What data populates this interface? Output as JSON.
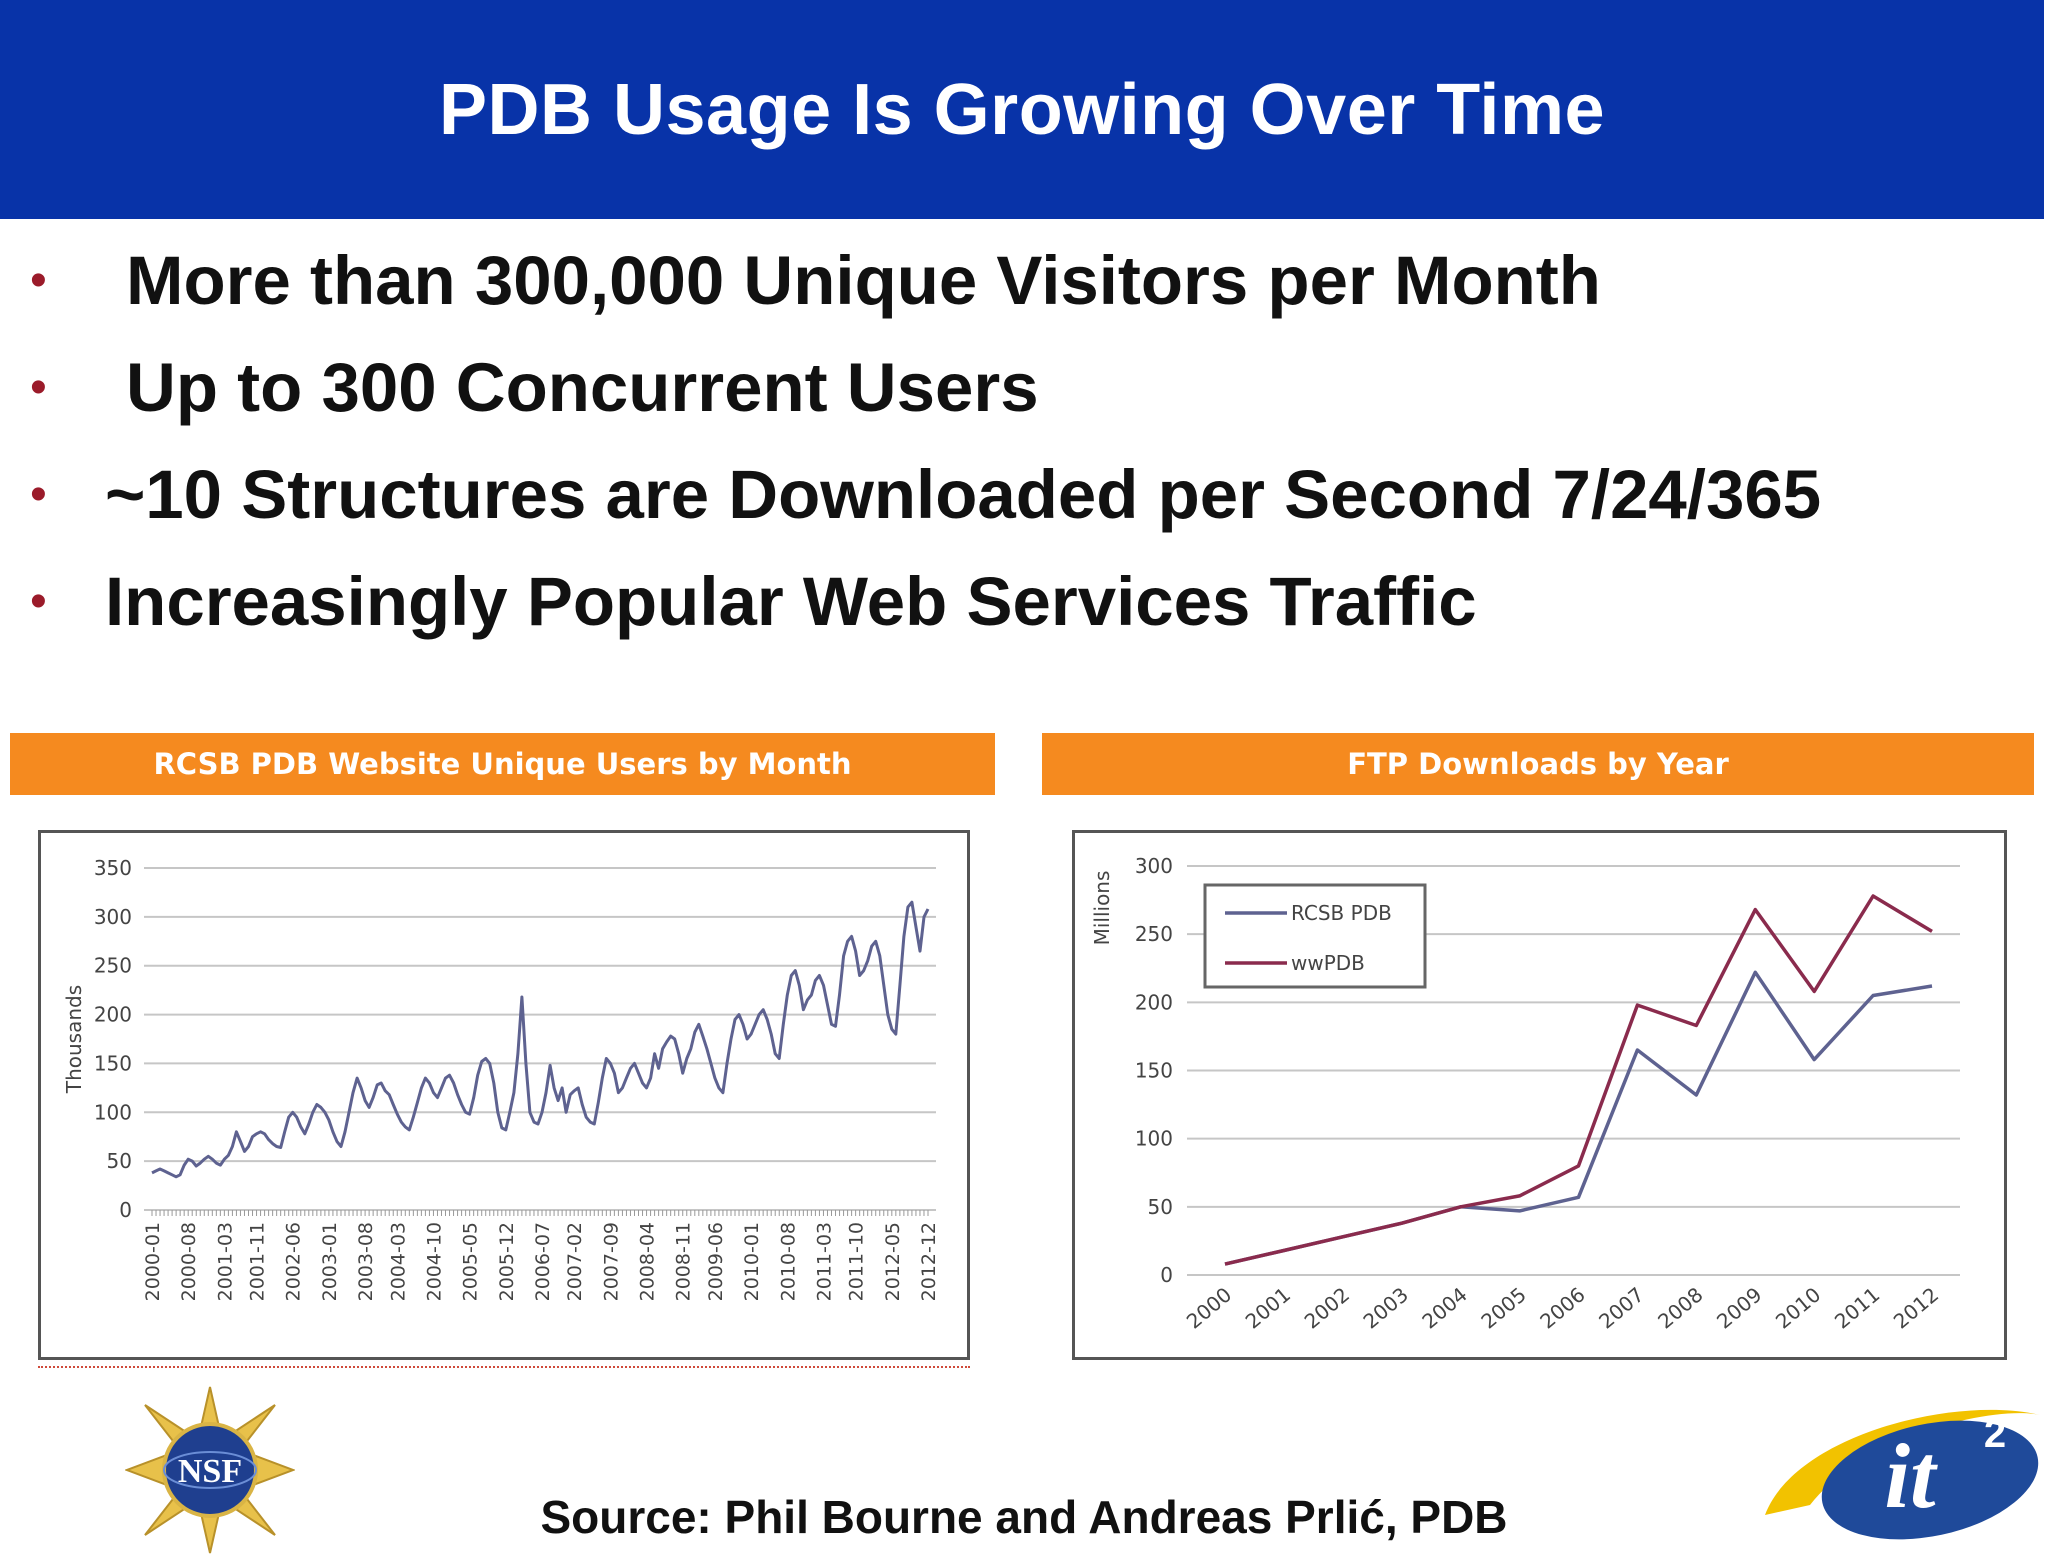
{
  "slide": {
    "title": "PDB Usage Is Growing Over Time",
    "bullets": [
      "More than 300,000 Unique Visitors per Month",
      "Up to 300 Concurrent Users",
      "~10 Structures are Downloaded per Second 7/24/365",
      "Increasingly Popular Web Services Traffic"
    ],
    "source": "Source: Phil Bourne and Andreas Prlić, PDB",
    "logos": {
      "left": "NSF",
      "right_text": "it",
      "right_superscript": "2"
    }
  },
  "colors": {
    "header_bg": "#0833a8",
    "bullet_marker": "#9b1b2a",
    "chart_header_bg": "#f58a1f",
    "rcsb_line": "#5e6290",
    "wwpdb_line": "#8a2b4d"
  },
  "chart_data": [
    {
      "type": "line",
      "header": "RCSB PDB Website Unique Users by Month",
      "title": "",
      "ylabel": "Thousands",
      "xlabel": "",
      "ylim": [
        0,
        350
      ],
      "yticks": [
        0,
        50,
        100,
        150,
        200,
        250,
        300,
        350
      ],
      "grid": true,
      "legend": "none",
      "x_tick_labels": [
        "2000-01",
        "2000-08",
        "2001-03",
        "2001-11",
        "2002-06",
        "2003-01",
        "2003-08",
        "2004-03",
        "2004-10",
        "2005-05",
        "2005-12",
        "2006-07",
        "2007-02",
        "2007-09",
        "2008-04",
        "2008-11",
        "2009-06",
        "2010-01",
        "2010-08",
        "2011-03",
        "2011-10",
        "2012-05",
        "2012-12"
      ],
      "series": [
        {
          "values": [
            38,
            40,
            42,
            40,
            38,
            36,
            34,
            36,
            46,
            52,
            50,
            45,
            48,
            52,
            55,
            52,
            48,
            46,
            52,
            56,
            65,
            80,
            70,
            60,
            65,
            75,
            78,
            80,
            78,
            72,
            68,
            65,
            64,
            80,
            95,
            100,
            95,
            85,
            78,
            88,
            100,
            108,
            105,
            100,
            92,
            80,
            70,
            65,
            80,
            100,
            120,
            135,
            125,
            112,
            105,
            115,
            128,
            130,
            122,
            118,
            108,
            98,
            90,
            85,
            82,
            95,
            110,
            125,
            135,
            130,
            120,
            115,
            125,
            135,
            138,
            130,
            118,
            108,
            100,
            98,
            115,
            138,
            152,
            155,
            150,
            130,
            100,
            84,
            82,
            100,
            120,
            160,
            218,
            150,
            100,
            90,
            88,
            100,
            120,
            148,
            125,
            112,
            125,
            100,
            118,
            122,
            125,
            108,
            95,
            90,
            88,
            110,
            135,
            155,
            150,
            140,
            120,
            125,
            135,
            145,
            150,
            140,
            130,
            125,
            135,
            160,
            145,
            165,
            172,
            178,
            175,
            160,
            140,
            155,
            165,
            182,
            190,
            178,
            165,
            150,
            135,
            125,
            120,
            150,
            175,
            195,
            200,
            190,
            175,
            180,
            190,
            200,
            205,
            195,
            180,
            160,
            155,
            190,
            220,
            240,
            245,
            230,
            205,
            215,
            220,
            235,
            240,
            230,
            210,
            190,
            188,
            220,
            260,
            275,
            280,
            265,
            240,
            245,
            255,
            270,
            275,
            260,
            230,
            200,
            185,
            180,
            230,
            280,
            310,
            315,
            290,
            265,
            300,
            308
          ]
        }
      ]
    },
    {
      "type": "line",
      "header": "FTP Downloads by Year",
      "title": "",
      "ylabel": "Millions",
      "xlabel": "",
      "ylim": [
        0,
        300
      ],
      "yticks": [
        0,
        50,
        100,
        150,
        200,
        250,
        300
      ],
      "grid": true,
      "legend": "top-left",
      "categories": [
        "2000",
        "2001",
        "2002",
        "2003",
        "2004",
        "2005",
        "2006",
        "2007",
        "2008",
        "2009",
        "2010",
        "2011",
        "2012"
      ],
      "series": [
        {
          "name": "RCSB PDB",
          "values": [
            8,
            18,
            28,
            38,
            50,
            47,
            57,
            165,
            132,
            222,
            158,
            205,
            212
          ]
        },
        {
          "name": "wwPDB",
          "values": [
            8,
            18,
            28,
            38,
            50,
            58,
            80,
            198,
            183,
            268,
            208,
            278,
            252
          ]
        }
      ]
    }
  ]
}
